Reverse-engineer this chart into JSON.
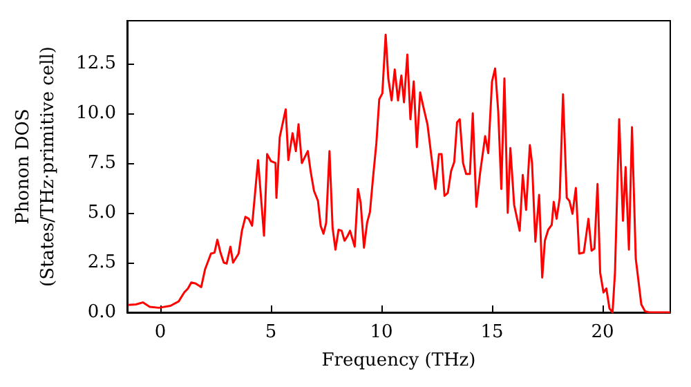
{
  "chart_data": {
    "type": "line",
    "xlabel": "Frequency (THz)",
    "ylabel": "Phonon DOS\n(States/THz·primitive cell)",
    "xlim": [
      -1.5,
      23.06
    ],
    "ylim": [
      0,
      14.65
    ],
    "xticks": [
      0,
      5,
      10,
      15,
      20
    ],
    "yticks": [
      {
        "value": 0,
        "label": "0.0"
      },
      2.5,
      {
        "value": 5,
        "label": "5.0"
      },
      7.5,
      {
        "value": 10,
        "label": "10.0"
      },
      12.5
    ],
    "grid": false,
    "marker": "none",
    "line_style": "solid",
    "series": [
      {
        "color": "#ff0000",
        "x": [
          -1.46,
          -1.1,
          -0.79,
          -0.48,
          -0.06,
          0.46,
          0.83,
          1.08,
          1.25,
          1.4,
          1.6,
          1.85,
          2.02,
          2.29,
          2.45,
          2.58,
          2.72,
          2.87,
          3.0,
          3.17,
          3.29,
          3.54,
          3.69,
          3.85,
          4.0,
          4.15,
          4.42,
          4.69,
          4.83,
          5.0,
          5.21,
          5.25,
          5.4,
          5.67,
          5.79,
          5.98,
          6.13,
          6.25,
          6.4,
          6.67,
          6.81,
          6.95,
          7.13,
          7.25,
          7.38,
          7.5,
          7.65,
          7.79,
          7.92,
          8.06,
          8.2,
          8.33,
          8.45,
          8.58,
          8.79,
          8.94,
          9.06,
          9.21,
          9.35,
          9.48,
          9.63,
          9.77,
          9.9,
          10.04,
          10.19,
          10.31,
          10.46,
          10.6,
          10.75,
          10.9,
          11.02,
          11.17,
          11.31,
          11.46,
          11.6,
          11.75,
          11.9,
          12.08,
          12.25,
          12.44,
          12.6,
          12.72,
          12.85,
          13.0,
          13.15,
          13.29,
          13.42,
          13.54,
          13.69,
          13.83,
          14.0,
          14.13,
          14.29,
          14.46,
          14.69,
          14.83,
          15.0,
          15.14,
          15.28,
          15.42,
          15.56,
          15.71,
          15.83,
          16.0,
          16.25,
          16.39,
          16.54,
          16.71,
          16.81,
          16.96,
          17.13,
          17.27,
          17.39,
          17.54,
          17.7,
          17.79,
          17.92,
          18.06,
          18.21,
          18.38,
          18.5,
          18.64,
          18.79,
          18.94,
          19.15,
          19.36,
          19.5,
          19.63,
          19.77,
          19.89,
          20.04,
          20.17,
          20.31,
          20.45,
          20.56,
          20.75,
          20.92,
          21.04,
          21.19,
          21.33,
          21.5,
          21.75,
          21.92,
          22.1,
          23.06
        ],
        "values": [
          0.37,
          0.4,
          0.5,
          0.28,
          0.23,
          0.33,
          0.55,
          1.0,
          1.2,
          1.5,
          1.45,
          1.27,
          2.15,
          2.95,
          3.0,
          3.65,
          3.0,
          2.5,
          2.45,
          3.3,
          2.5,
          2.95,
          4.1,
          4.8,
          4.7,
          4.35,
          7.65,
          3.85,
          7.95,
          7.6,
          7.5,
          5.75,
          8.8,
          10.2,
          7.65,
          9.0,
          8.1,
          9.45,
          7.5,
          8.1,
          7.0,
          6.1,
          5.6,
          4.35,
          3.95,
          4.5,
          8.1,
          4.25,
          3.15,
          4.15,
          4.1,
          3.6,
          3.8,
          4.1,
          3.3,
          6.2,
          5.5,
          3.25,
          4.5,
          5.05,
          6.9,
          8.5,
          10.7,
          11.0,
          13.95,
          11.75,
          10.65,
          12.2,
          10.65,
          11.9,
          10.55,
          12.95,
          9.7,
          11.6,
          8.3,
          11.05,
          10.3,
          9.45,
          7.9,
          6.2,
          7.95,
          7.95,
          5.85,
          6.0,
          7.1,
          7.55,
          9.55,
          9.7,
          7.5,
          6.95,
          6.95,
          10.0,
          5.3,
          7.0,
          8.85,
          8.0,
          11.6,
          12.25,
          10.1,
          6.2,
          11.75,
          5.0,
          8.25,
          5.4,
          4.1,
          6.9,
          5.15,
          8.4,
          7.5,
          3.55,
          5.9,
          1.75,
          3.6,
          4.15,
          4.4,
          5.55,
          4.7,
          5.75,
          10.95,
          5.75,
          5.6,
          4.95,
          6.25,
          2.95,
          3.0,
          4.7,
          3.1,
          3.2,
          6.45,
          2.0,
          1.0,
          1.2,
          0.2,
          0.0,
          2.0,
          9.7,
          4.6,
          7.3,
          3.15,
          9.3,
          2.7,
          0.4,
          0.05,
          0.0,
          0.0
        ]
      }
    ]
  }
}
